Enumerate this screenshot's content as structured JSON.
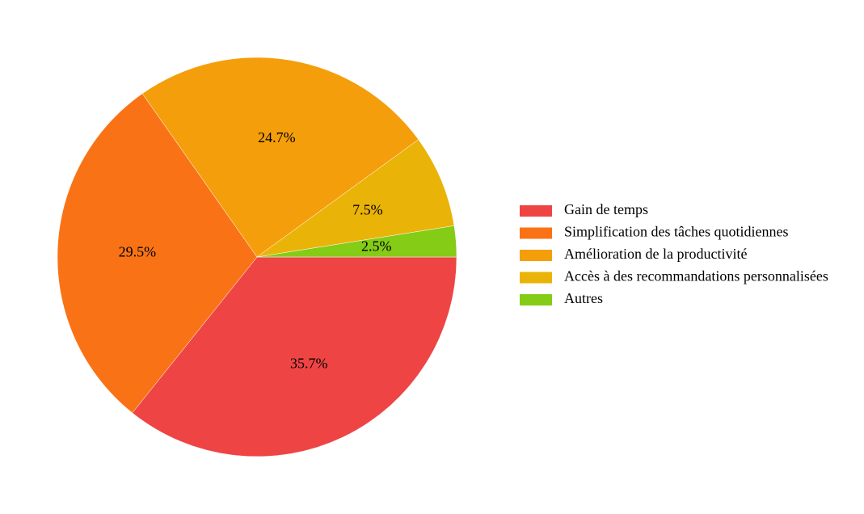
{
  "chart_data": {
    "type": "pie",
    "categories": [
      "Gain de temps",
      "Simplification des tâches quotidiennes",
      "Amélioration de la productivité",
      "Accès à des recommandations personnalisées",
      "Autres"
    ],
    "values": [
      35.7,
      29.5,
      24.7,
      7.5,
      2.5
    ],
    "value_labels": [
      "35.7%",
      "29.5%",
      "24.7%",
      "7.5%",
      "2.5%"
    ],
    "colors": [
      "#ef4444",
      "#f97316",
      "#f59e0b",
      "#eab308",
      "#84cc16"
    ],
    "legend_position": "right",
    "start_angle": "3 o'clock",
    "direction": "clockwise"
  }
}
